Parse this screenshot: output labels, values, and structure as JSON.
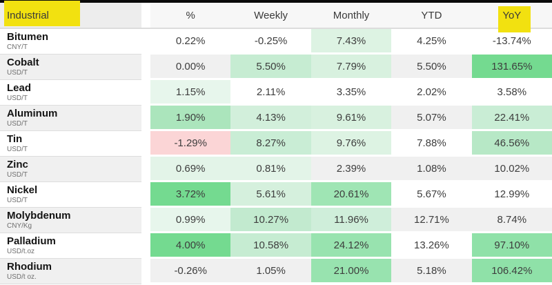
{
  "chart_data": {
    "type": "table",
    "title": "Industrial",
    "columns": [
      "%",
      "Weekly",
      "Monthly",
      "YTD",
      "YoY"
    ],
    "highlighted_terms": [
      "Industrial",
      "YoY"
    ],
    "rows": [
      {
        "name": "Bitumen",
        "unit": "CNY/T",
        "values": [
          "0.22%",
          "-0.25%",
          "7.43%",
          "4.25%",
          "-13.74%"
        ],
        "colors": [
          null,
          null,
          "#ddf3e3",
          null,
          null
        ]
      },
      {
        "name": "Cobalt",
        "unit": "USD/T",
        "values": [
          "0.00%",
          "5.50%",
          "7.79%",
          "5.50%",
          "131.65%"
        ],
        "colors": [
          null,
          "#c6ecd2",
          "#d8f1df",
          null,
          "#74da90"
        ]
      },
      {
        "name": "Lead",
        "unit": "USD/T",
        "values": [
          "1.15%",
          "2.11%",
          "3.35%",
          "2.02%",
          "3.58%"
        ],
        "colors": [
          "#e7f6ec",
          null,
          null,
          null,
          null
        ]
      },
      {
        "name": "Aluminum",
        "unit": "USD/T",
        "values": [
          "1.90%",
          "4.13%",
          "9.61%",
          "5.07%",
          "22.41%"
        ],
        "colors": [
          "#abe5bc",
          "#d2efdb",
          "#d8f1df",
          null,
          "#c9edd5"
        ]
      },
      {
        "name": "Tin",
        "unit": "USD/T",
        "values": [
          "-1.29%",
          "8.27%",
          "9.76%",
          "7.88%",
          "46.56%"
        ],
        "colors": [
          "#fbd5d6",
          "#c9edd5",
          "#ddf3e3",
          null,
          "#b7e8c6"
        ]
      },
      {
        "name": "Zinc",
        "unit": "USD/T",
        "values": [
          "0.69%",
          "0.81%",
          "2.39%",
          "1.08%",
          "10.02%"
        ],
        "colors": [
          "#e3f4e8",
          "#e3f4e8",
          null,
          null,
          null
        ]
      },
      {
        "name": "Nickel",
        "unit": "USD/T",
        "values": [
          "3.72%",
          "5.61%",
          "20.61%",
          "5.67%",
          "12.99%"
        ],
        "colors": [
          "#74da90",
          "#d5f0dd",
          "#9fe5b4",
          null,
          null
        ]
      },
      {
        "name": "Molybdenum",
        "unit": "CNY/Kg",
        "values": [
          "0.99%",
          "10.27%",
          "11.96%",
          "12.71%",
          "8.74%"
        ],
        "colors": [
          "#e7f6ec",
          "#c2eacf",
          "#cfeeda",
          null,
          null
        ]
      },
      {
        "name": "Palladium",
        "unit": "USD/t.oz",
        "values": [
          "4.00%",
          "10.58%",
          "24.12%",
          "13.26%",
          "97.10%"
        ],
        "colors": [
          "#74da90",
          "#c6ecd2",
          "#98e3af",
          null,
          "#8fe1a8"
        ]
      },
      {
        "name": "Rhodium",
        "unit": "USD/t oz.",
        "values": [
          "-0.26%",
          "1.05%",
          "21.00%",
          "5.18%",
          "106.42%"
        ],
        "colors": [
          null,
          null,
          "#98e3af",
          null,
          "#8fe1a8"
        ]
      }
    ]
  },
  "theme": {
    "highlight_yellow": "#f2e110",
    "stripe_gray": "#f0f0f0",
    "row_white": "#ffffff"
  }
}
